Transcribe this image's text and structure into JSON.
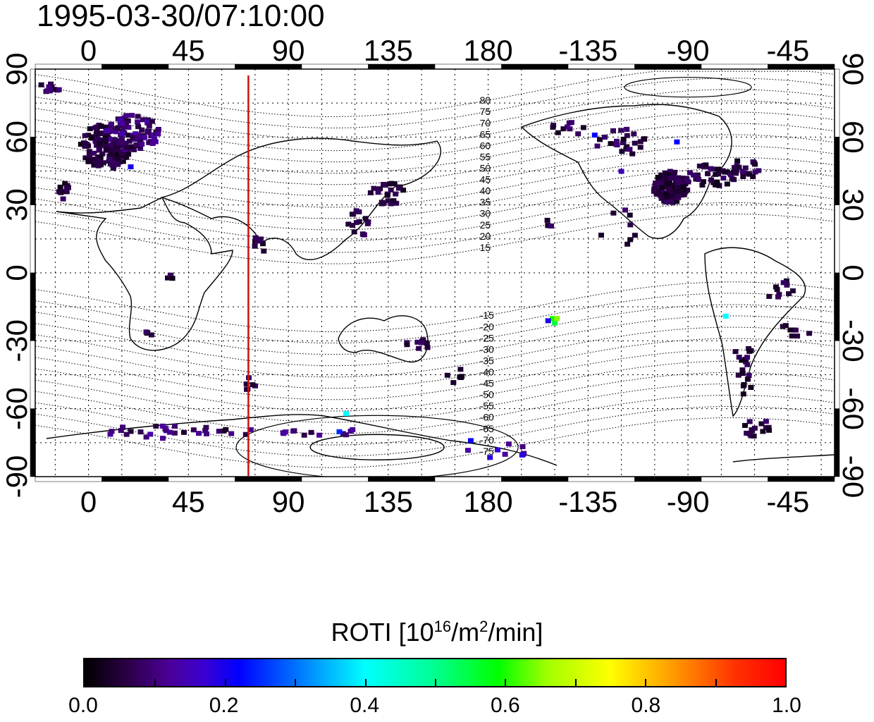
{
  "title": "1995-03-30/07:10:00",
  "map": {
    "lon_ticks": [
      {
        "lon": 0,
        "label": "0"
      },
      {
        "lon": 45,
        "label": "45"
      },
      {
        "lon": 90,
        "label": "90"
      },
      {
        "lon": 135,
        "label": "135"
      },
      {
        "lon": 180,
        "label": "180"
      },
      {
        "lon": 225,
        "label": "-135"
      },
      {
        "lon": 270,
        "label": "-90"
      },
      {
        "lon": 315,
        "label": "-45"
      }
    ],
    "lat_ticks": [
      {
        "lat": 90,
        "label": "90"
      },
      {
        "lat": 60,
        "label": "60"
      },
      {
        "lat": 30,
        "label": "30"
      },
      {
        "lat": 0,
        "label": "0"
      },
      {
        "lat": -30,
        "label": "-30"
      },
      {
        "lat": -60,
        "label": "-60"
      },
      {
        "lat": -90,
        "label": "-90"
      }
    ],
    "lon_range": [
      -24,
      336
    ],
    "lat_range": [
      -90,
      90
    ],
    "grid": true,
    "magnetic_latitude_labels": [
      "80",
      "75",
      "70",
      "65",
      "60",
      "55",
      "50",
      "45",
      "40",
      "35",
      "30",
      "25",
      "20",
      "15",
      "-15",
      "-20",
      "-25",
      "-30",
      "-35",
      "-40",
      "-45",
      "-50",
      "-55",
      "-60",
      "-65",
      "-70",
      "-75"
    ],
    "terminator_lon": 72,
    "terminator_color": "#cc1111"
  },
  "colorbar": {
    "title_prefix": "ROTI  [10",
    "title_sup1": "16",
    "title_mid": "/m",
    "title_sup2": "2",
    "title_suffix": "/min]",
    "min": 0.0,
    "max": 1.0,
    "labels": [
      "0.0",
      "0.2",
      "0.4",
      "0.6",
      "0.8",
      "1.0"
    ]
  },
  "clusters": [
    {
      "lon": 8,
      "lat": 56,
      "rx": 12,
      "ry": 10,
      "n": 140,
      "roti": 0.05
    },
    {
      "lon": 20,
      "lat": 62,
      "rx": 12,
      "ry": 8,
      "n": 80,
      "roti": 0.08
    },
    {
      "lon": -18,
      "lat": 82,
      "rx": 6,
      "ry": 2,
      "n": 12,
      "roti": 0.06
    },
    {
      "lon": -10,
      "lat": 36,
      "rx": 4,
      "ry": 4,
      "n": 10,
      "roti": 0.05
    },
    {
      "lon": -98,
      "lat": 38,
      "rx": 8,
      "ry": 7,
      "n": 110,
      "roti": 0.05
    },
    {
      "lon": -80,
      "lat": 43,
      "rx": 12,
      "ry": 5,
      "n": 40,
      "roti": 0.05
    },
    {
      "lon": -120,
      "lat": 58,
      "rx": 12,
      "ry": 6,
      "n": 25,
      "roti": 0.06
    },
    {
      "lon": -145,
      "lat": 64,
      "rx": 10,
      "ry": 4,
      "n": 10,
      "roti": 0.07
    },
    {
      "lon": -65,
      "lat": 46,
      "rx": 8,
      "ry": 4,
      "n": 18,
      "roti": 0.05
    },
    {
      "lon": 135,
      "lat": 35,
      "rx": 8,
      "ry": 5,
      "n": 25,
      "roti": 0.05
    },
    {
      "lon": 122,
      "lat": 22,
      "rx": 5,
      "ry": 6,
      "n": 15,
      "roti": 0.05
    },
    {
      "lon": 78,
      "lat": 13,
      "rx": 4,
      "ry": 4,
      "n": 8,
      "roti": 0.05
    },
    {
      "lon": -152,
      "lat": 22,
      "rx": 2,
      "ry": 2,
      "n": 4,
      "roti": 0.05
    },
    {
      "lon": -48,
      "lat": -8,
      "rx": 6,
      "ry": 6,
      "n": 10,
      "roti": 0.05
    },
    {
      "lon": -65,
      "lat": -42,
      "rx": 5,
      "ry": 12,
      "n": 20,
      "roti": 0.05
    },
    {
      "lon": -60,
      "lat": -68,
      "rx": 8,
      "ry": 4,
      "n": 15,
      "roti": 0.05
    },
    {
      "lon": 148,
      "lat": -32,
      "rx": 5,
      "ry": 4,
      "n": 10,
      "roti": 0.05
    },
    {
      "lon": 37,
      "lat": -1,
      "rx": 2,
      "ry": 2,
      "n": 4,
      "roti": 0.05
    },
    {
      "lon": 28,
      "lat": -27,
      "rx": 3,
      "ry": 2,
      "n": 4,
      "roti": 0.05
    },
    {
      "lon": 73,
      "lat": -49,
      "rx": 3,
      "ry": 3,
      "n": 6,
      "roti": 0.05
    },
    {
      "lon": 165,
      "lat": -45,
      "rx": 4,
      "ry": 4,
      "n": 6,
      "roti": 0.05
    },
    {
      "lon": 40,
      "lat": -70,
      "rx": 35,
      "ry": 3,
      "n": 30,
      "roti": 0.08
    },
    {
      "lon": 110,
      "lat": -70,
      "rx": 25,
      "ry": 2,
      "n": 12,
      "roti": 0.08
    },
    {
      "lon": 180,
      "lat": -77,
      "rx": 22,
      "ry": 5,
      "n": 10,
      "roti": 0.12
    },
    {
      "lon": -40,
      "lat": -25,
      "rx": 12,
      "ry": 4,
      "n": 8,
      "roti": 0.05
    },
    {
      "lon": -123,
      "lat": 22,
      "rx": 15,
      "ry": 10,
      "n": 8,
      "roti": 0.05
    }
  ],
  "bright_points": [
    {
      "lon": -150,
      "lat": -22,
      "roti": 0.55
    },
    {
      "lon": -151,
      "lat": -20,
      "roti": 0.6
    },
    {
      "lon": -149,
      "lat": -20,
      "roti": 0.65
    },
    {
      "lon": -153,
      "lat": -21,
      "roti": 0.2
    },
    {
      "lon": -73,
      "lat": -19,
      "roti": 0.4
    },
    {
      "lon": 116,
      "lat": -62,
      "roti": 0.4
    },
    {
      "lon": 113,
      "lat": -70,
      "roti": 0.25
    },
    {
      "lon": 19,
      "lat": 47,
      "roti": 0.2
    },
    {
      "lon": -132,
      "lat": 61,
      "roti": 0.22
    },
    {
      "lon": -95,
      "lat": 58,
      "roti": 0.22
    },
    {
      "lon": -120,
      "lat": 45,
      "roti": 0.15
    }
  ]
}
